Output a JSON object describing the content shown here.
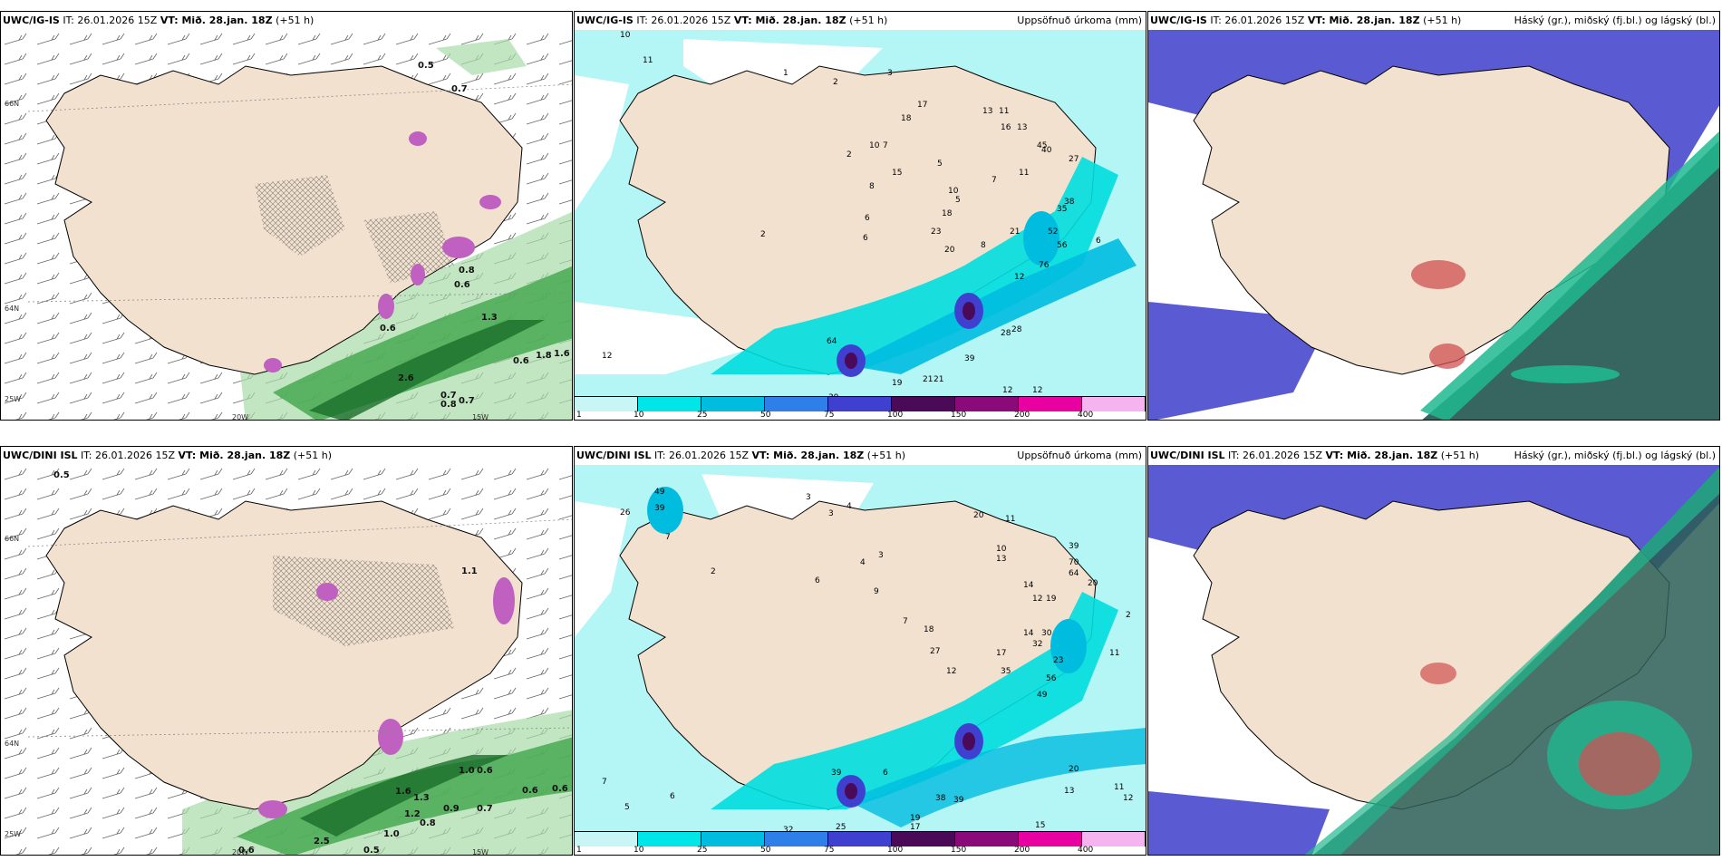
{
  "panels": [
    {
      "id": "p1",
      "model": "UWC/IG-IS",
      "it": "IT: 26.01.2026 15Z",
      "vt": "VT: Mið. 28.jan. 18Z",
      "lead": "(+51 h)",
      "title_right": ""
    },
    {
      "id": "p2",
      "model": "UWC/IG-IS",
      "it": "IT: 26.01.2026 15Z",
      "vt": "VT: Mið. 28.jan. 18Z",
      "lead": "(+51 h)",
      "title_right": "Uppsöfnuð úrkoma (mm)"
    },
    {
      "id": "p3",
      "model": "UWC/IG-IS",
      "it": "IT: 26.01.2026 15Z",
      "vt": "VT: Mið. 28.jan. 18Z",
      "lead": "(+51 h)",
      "title_right": "Háský (gr.), miðský (fj.bl.) og lágský (bl.)"
    },
    {
      "id": "p4",
      "model": "UWC/DINI ISL",
      "it": "IT: 26.01.2026 15Z",
      "vt": "VT: Mið. 28.jan. 18Z",
      "lead": "(+51 h)",
      "title_right": ""
    },
    {
      "id": "p5",
      "model": "UWC/DINI ISL",
      "it": "IT: 26.01.2026 15Z",
      "vt": "VT: Mið. 28.jan. 18Z",
      "lead": "(+51 h)",
      "title_right": "Uppsöfnuð úrkoma (mm)"
    },
    {
      "id": "p6",
      "model": "UWC/DINI ISL",
      "it": "IT: 26.01.2026 15Z",
      "vt": "VT: Mið. 28.jan. 18Z",
      "lead": "(+51 h)",
      "title_right": "Háský (gr.), miðský (fj.bl.) og lágský (bl.)"
    }
  ],
  "coords": {
    "lat66": "66N",
    "lat64": "64N",
    "lon25": "25W",
    "lon20": "20W",
    "lon15": "15W"
  },
  "colorbar": {
    "labels": [
      "1",
      "10",
      "25",
      "50",
      "75",
      "100",
      "150",
      "200",
      "400"
    ],
    "colors": [
      "#c8f6f6",
      "#00e5e5",
      "#00bde0",
      "#2f7fe8",
      "#3f3fd0",
      "#4b0a58",
      "#8b0a7a",
      "#e800a0",
      "#f5b4f0"
    ]
  },
  "wind_labels_top": [
    "0.5",
    "0.7",
    "0.6",
    "1.3",
    "2.6",
    "1.6",
    "0.6",
    "0.6",
    "0.7",
    "0.8",
    "1.8",
    "0.7",
    "0.8"
  ],
  "wind_labels_bottom": [
    "0.5",
    "1.1",
    "1.0",
    "0.6",
    "1.6",
    "1.3",
    "1.2",
    "0.9",
    "0.7",
    "1.0",
    "0.8",
    "0.6",
    "2.5",
    "0.6",
    "0.5",
    "0.6"
  ],
  "precip_labels_top": [
    "10",
    "11",
    "2",
    "15",
    "2",
    "6",
    "5",
    "1",
    "8",
    "18",
    "17",
    "13",
    "11",
    "16",
    "13",
    "2",
    "40",
    "5",
    "10",
    "7",
    "3",
    "10",
    "7",
    "11",
    "27",
    "18",
    "38",
    "45",
    "56",
    "6",
    "23",
    "20",
    "8",
    "21",
    "35",
    "52",
    "6",
    "76",
    "12",
    "39",
    "28",
    "28",
    "12",
    "12",
    "19",
    "21",
    "21",
    "39",
    "64",
    "12"
  ],
  "precip_labels_bottom": [
    "49",
    "39",
    "3",
    "26",
    "7",
    "6",
    "2",
    "3",
    "4",
    "4",
    "3",
    "9",
    "7",
    "20",
    "11",
    "10",
    "13",
    "14",
    "12",
    "19",
    "20",
    "2",
    "17",
    "32",
    "39",
    "70",
    "64",
    "18",
    "27",
    "12",
    "14",
    "30",
    "35",
    "23",
    "56",
    "49",
    "11",
    "5",
    "6",
    "7",
    "39",
    "6",
    "38",
    "39",
    "19",
    "17",
    "32",
    "25",
    "12",
    "13",
    "15",
    "20",
    "11"
  ],
  "colors": {
    "land": "#f2e1cf",
    "sea_precip": "#b4f5f5",
    "cloud_blue": "#5a5ad2",
    "cloud_green": "#1fb88f",
    "cloud_dark": "#2b5e56",
    "wind_green": "#3fa64a"
  }
}
